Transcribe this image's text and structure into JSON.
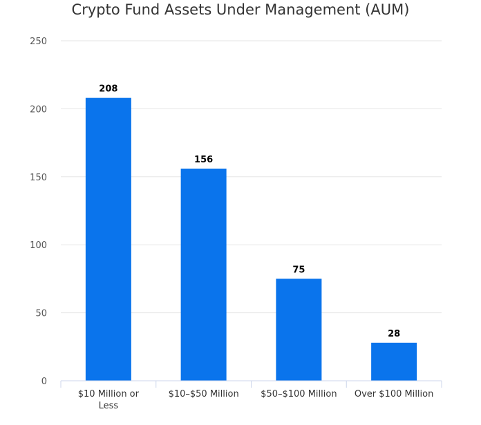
{
  "chart_data": {
    "type": "bar",
    "title": "Crypto Fund Assets Under Management (AUM)",
    "categories": [
      [
        "$10 Million or",
        "Less"
      ],
      [
        "$10–$50 Million"
      ],
      [
        "$50–$100 Million"
      ],
      [
        "Over $100 Million"
      ]
    ],
    "values": [
      208,
      156,
      75,
      28
    ],
    "data_labels": [
      "208",
      "156",
      "75",
      "28"
    ],
    "xlabel": "",
    "ylabel": "",
    "ylim": [
      0,
      250
    ],
    "yticks": [
      0,
      50,
      100,
      150,
      200,
      250
    ],
    "grid": true,
    "legend": "none",
    "bar_color": "#0a74ec"
  }
}
